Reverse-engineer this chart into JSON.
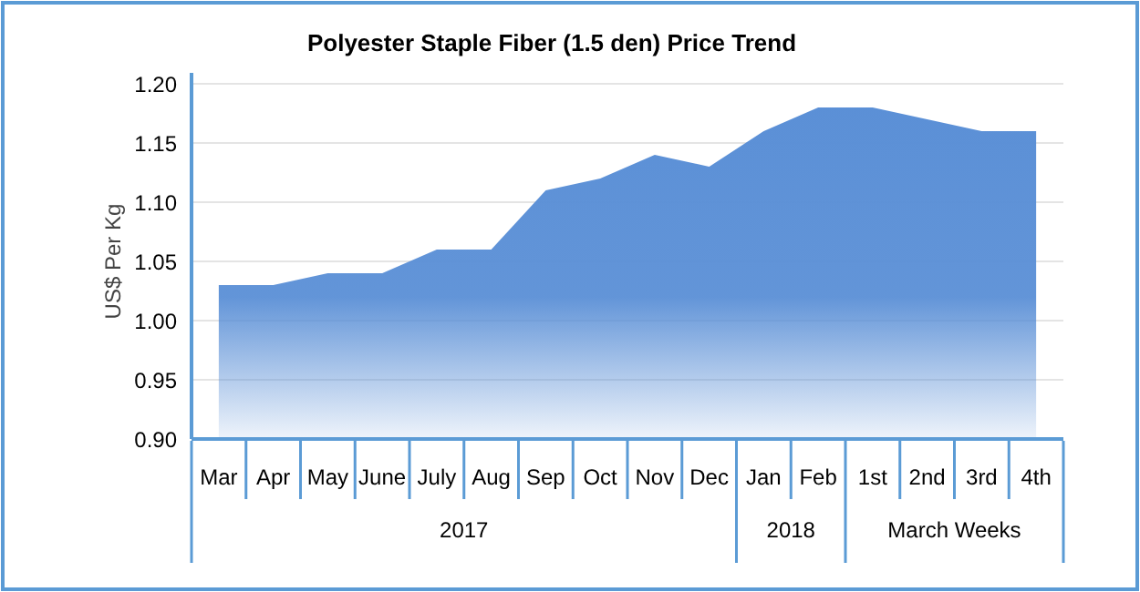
{
  "chart_data": {
    "type": "area",
    "title": "Polyester Staple Fiber (1.5 den) Price Trend",
    "ylabel": "US$ Per Kg",
    "categories": [
      "Mar",
      "Apr",
      "May",
      "June",
      "July",
      "Aug",
      "Sep",
      "Oct",
      "Nov",
      "Dec",
      "Jan",
      "Feb",
      "1st",
      "2nd",
      "3rd",
      "4th"
    ],
    "values": [
      1.03,
      1.03,
      1.04,
      1.04,
      1.06,
      1.06,
      1.11,
      1.12,
      1.14,
      1.13,
      1.16,
      1.18,
      1.18,
      1.17,
      1.16,
      1.16
    ],
    "color": "#5a8fd6",
    "ylim": [
      0.9,
      1.2
    ],
    "yticks": [
      {
        "value": 0.9,
        "label": "0.90"
      },
      {
        "value": 0.95,
        "label": "0.95"
      },
      {
        "value": 1.0,
        "label": "1.00"
      },
      {
        "value": 1.05,
        "label": "1.05"
      },
      {
        "value": 1.1,
        "label": "1.10"
      },
      {
        "value": 1.15,
        "label": "1.15"
      },
      {
        "value": 1.2,
        "label": "1.20"
      }
    ],
    "grid": "y",
    "annotations": [
      "2017",
      "2018",
      "March Weeks"
    ]
  }
}
